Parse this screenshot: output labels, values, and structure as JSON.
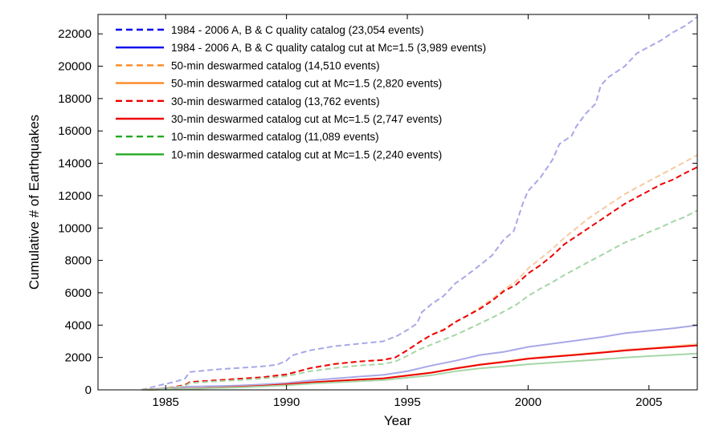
{
  "chart_data": {
    "type": "line",
    "xlabel": "Year",
    "ylabel": "Cumulative # of Earthquakes",
    "xlim": [
      1982.2,
      2007
    ],
    "ylim": [
      0,
      23200
    ],
    "xticks": [
      1985,
      1990,
      1995,
      2000,
      2005
    ],
    "yticks": [
      0,
      2000,
      4000,
      6000,
      8000,
      10000,
      12000,
      14000,
      16000,
      18000,
      20000,
      22000
    ],
    "grid": false,
    "legend_position": "top-left",
    "series": [
      {
        "name": "1984 - 2006 A, B & C quality catalog (23,054 events)",
        "style": "dashed",
        "color": "#0000ee",
        "faded_color": "#a8a8e8",
        "x": [
          1984.0,
          1984.8,
          1985.4,
          1985.8,
          1986.0,
          1987.0,
          1988.0,
          1989.0,
          1989.6,
          1990.0,
          1990.2,
          1990.5,
          1991.0,
          1992.0,
          1993.0,
          1994.0,
          1994.6,
          1995.0,
          1995.4,
          1995.6,
          1996.0,
          1996.5,
          1997.0,
          1997.3,
          1998.0,
          1998.5,
          1999.0,
          1999.4,
          1999.8,
          2000.0,
          2000.5,
          2001.0,
          2001.3,
          2001.8,
          2002.0,
          2002.4,
          2002.8,
          2003.0,
          2003.3,
          2004.0,
          2004.5,
          2005.0,
          2005.5,
          2006.0,
          2006.5,
          2007.0
        ],
        "y": [
          0,
          300,
          500,
          700,
          1100,
          1250,
          1350,
          1450,
          1550,
          1800,
          2100,
          2250,
          2450,
          2700,
          2850,
          3000,
          3350,
          3700,
          4100,
          4800,
          5300,
          5800,
          6600,
          6900,
          7700,
          8300,
          9300,
          9800,
          11600,
          12300,
          13100,
          14200,
          15200,
          15700,
          16300,
          17100,
          17700,
          18800,
          19300,
          20000,
          20800,
          21200,
          21600,
          22100,
          22500,
          23054
        ]
      },
      {
        "name": "1984 - 2006 A, B & C quality catalog cut at Mc=1.5 (3,989 events)",
        "style": "solid",
        "color": "#0000ee",
        "faded_color": "#a8a8e8",
        "x": [
          1984.0,
          1985.0,
          1986.0,
          1987.0,
          1988.0,
          1989.0,
          1990.0,
          1991.0,
          1992.0,
          1993.0,
          1994.0,
          1995.0,
          1996.0,
          1997.0,
          1998.0,
          1999.0,
          2000.0,
          2001.0,
          2002.0,
          2003.0,
          2004.0,
          2005.0,
          2006.0,
          2007.0
        ],
        "y": [
          0,
          100,
          200,
          230,
          270,
          330,
          420,
          580,
          700,
          820,
          920,
          1150,
          1500,
          1800,
          2150,
          2350,
          2650,
          2850,
          3050,
          3250,
          3500,
          3650,
          3800,
          3989
        ]
      },
      {
        "name": "50-min deswarmed catalog (14,510 events)",
        "style": "dashed",
        "color": "#ff8822",
        "faded_color": "#f7c9a0",
        "x": [
          1984.0,
          1985.0,
          1985.8,
          1986.0,
          1987.0,
          1988.0,
          1989.0,
          1990.0,
          1990.5,
          1991.0,
          1992.0,
          1993.0,
          1994.0,
          1994.5,
          1995.0,
          1995.5,
          1996.0,
          1996.5,
          1997.0,
          1997.5,
          1998.0,
          1998.5,
          1999.0,
          1999.5,
          2000.0,
          2000.5,
          2001.0,
          2001.5,
          2002.0,
          2002.5,
          2003.0,
          2003.5,
          2004.0,
          2004.5,
          2005.0,
          2005.5,
          2006.0,
          2006.5,
          2007.0
        ],
        "y": [
          0,
          80,
          300,
          480,
          580,
          680,
          780,
          950,
          1150,
          1350,
          1600,
          1750,
          1850,
          2000,
          2450,
          2950,
          3400,
          3750,
          4200,
          4600,
          5100,
          5600,
          6200,
          6700,
          7500,
          8100,
          8700,
          9400,
          10000,
          10600,
          11100,
          11600,
          12100,
          12500,
          12900,
          13300,
          13700,
          14100,
          14510
        ]
      },
      {
        "name": "50-min deswarmed catalog cut at Mc=1.5 (2,820 events)",
        "style": "solid",
        "color": "#ff8822",
        "faded_color": "#f7c9a0",
        "x": [
          1984.0,
          1985.0,
          1986.0,
          1987.0,
          1988.0,
          1989.0,
          1990.0,
          1991.0,
          1992.0,
          1993.0,
          1994.0,
          1995.0,
          1996.0,
          1997.0,
          1998.0,
          1999.0,
          2000.0,
          2001.0,
          2002.0,
          2003.0,
          2004.0,
          2005.0,
          2006.0,
          2007.0
        ],
        "y": [
          0,
          30,
          80,
          140,
          190,
          260,
          350,
          470,
          560,
          640,
          720,
          900,
          1080,
          1350,
          1580,
          1760,
          1960,
          2080,
          2200,
          2330,
          2480,
          2580,
          2700,
          2820
        ]
      },
      {
        "name": "30-min deswarmed catalog (13,762 events)",
        "style": "dashed",
        "color": "#ee0000",
        "faded_color": "#ee0000",
        "x": [
          1984.0,
          1985.0,
          1985.8,
          1986.0,
          1987.0,
          1988.0,
          1989.0,
          1990.0,
          1990.5,
          1991.0,
          1992.0,
          1993.0,
          1994.0,
          1994.5,
          1995.0,
          1995.5,
          1996.0,
          1996.5,
          1997.0,
          1997.5,
          1998.0,
          1998.5,
          1999.0,
          1999.5,
          2000.0,
          2000.5,
          2001.0,
          2001.5,
          2002.0,
          2002.5,
          2003.0,
          2003.5,
          2004.0,
          2004.5,
          2005.0,
          2005.5,
          2006.0,
          2006.5,
          2007.0
        ],
        "y": [
          0,
          80,
          300,
          480,
          580,
          680,
          780,
          950,
          1150,
          1350,
          1600,
          1750,
          1850,
          2000,
          2450,
          2950,
          3400,
          3700,
          4200,
          4600,
          5000,
          5500,
          6100,
          6500,
          7200,
          7700,
          8300,
          9000,
          9500,
          10000,
          10500,
          11000,
          11500,
          11900,
          12300,
          12700,
          13000,
          13400,
          13762
        ]
      },
      {
        "name": "30-min deswarmed catalog cut at Mc=1.5 (2,747 events)",
        "style": "solid",
        "color": "#ee0000",
        "faded_color": "#ee0000",
        "x": [
          1984.0,
          1985.0,
          1986.0,
          1987.0,
          1988.0,
          1989.0,
          1990.0,
          1991.0,
          1992.0,
          1993.0,
          1994.0,
          1995.0,
          1996.0,
          1997.0,
          1998.0,
          1999.0,
          2000.0,
          2001.0,
          2002.0,
          2003.0,
          2004.0,
          2005.0,
          2006.0,
          2007.0
        ],
        "y": [
          0,
          30,
          75,
          130,
          180,
          250,
          340,
          460,
          550,
          630,
          710,
          880,
          1060,
          1320,
          1550,
          1720,
          1920,
          2040,
          2160,
          2290,
          2430,
          2540,
          2640,
          2747
        ]
      },
      {
        "name": "10-min deswarmed catalog (11,089 events)",
        "style": "dashed",
        "color": "#22aa22",
        "faded_color": "#a6d6a6",
        "x": [
          1984.0,
          1985.0,
          1985.8,
          1986.0,
          1987.0,
          1988.0,
          1989.0,
          1990.0,
          1990.5,
          1991.0,
          1992.0,
          1993.0,
          1994.0,
          1994.5,
          1995.0,
          1995.5,
          1996.0,
          1996.5,
          1997.0,
          1997.5,
          1998.0,
          1998.5,
          1999.0,
          1999.5,
          2000.0,
          2000.5,
          2001.0,
          2001.5,
          2002.0,
          2002.5,
          2003.0,
          2003.5,
          2004.0,
          2004.5,
          2005.0,
          2005.5,
          2006.0,
          2006.5,
          2007.0
        ],
        "y": [
          0,
          70,
          250,
          420,
          520,
          600,
          700,
          850,
          1000,
          1150,
          1350,
          1500,
          1600,
          1750,
          2100,
          2500,
          2800,
          3100,
          3400,
          3750,
          4100,
          4450,
          4850,
          5250,
          5800,
          6250,
          6650,
          7100,
          7500,
          7900,
          8300,
          8700,
          9100,
          9400,
          9750,
          10050,
          10400,
          10700,
          11089
        ]
      },
      {
        "name": "10-min deswarmed catalog cut at Mc=1.5 (2,240 events)",
        "style": "solid",
        "color": "#22aa22",
        "faded_color": "#a6d6a6",
        "x": [
          1984.0,
          1985.0,
          1986.0,
          1987.0,
          1988.0,
          1989.0,
          1990.0,
          1991.0,
          1992.0,
          1993.0,
          1994.0,
          1995.0,
          1996.0,
          1997.0,
          1998.0,
          1999.0,
          2000.0,
          2001.0,
          2002.0,
          2003.0,
          2004.0,
          2005.0,
          2006.0,
          2007.0
        ],
        "y": [
          0,
          25,
          60,
          110,
          150,
          210,
          280,
          380,
          460,
          530,
          600,
          750,
          900,
          1150,
          1330,
          1450,
          1580,
          1680,
          1780,
          1880,
          2000,
          2080,
          2160,
          2240
        ]
      }
    ]
  }
}
